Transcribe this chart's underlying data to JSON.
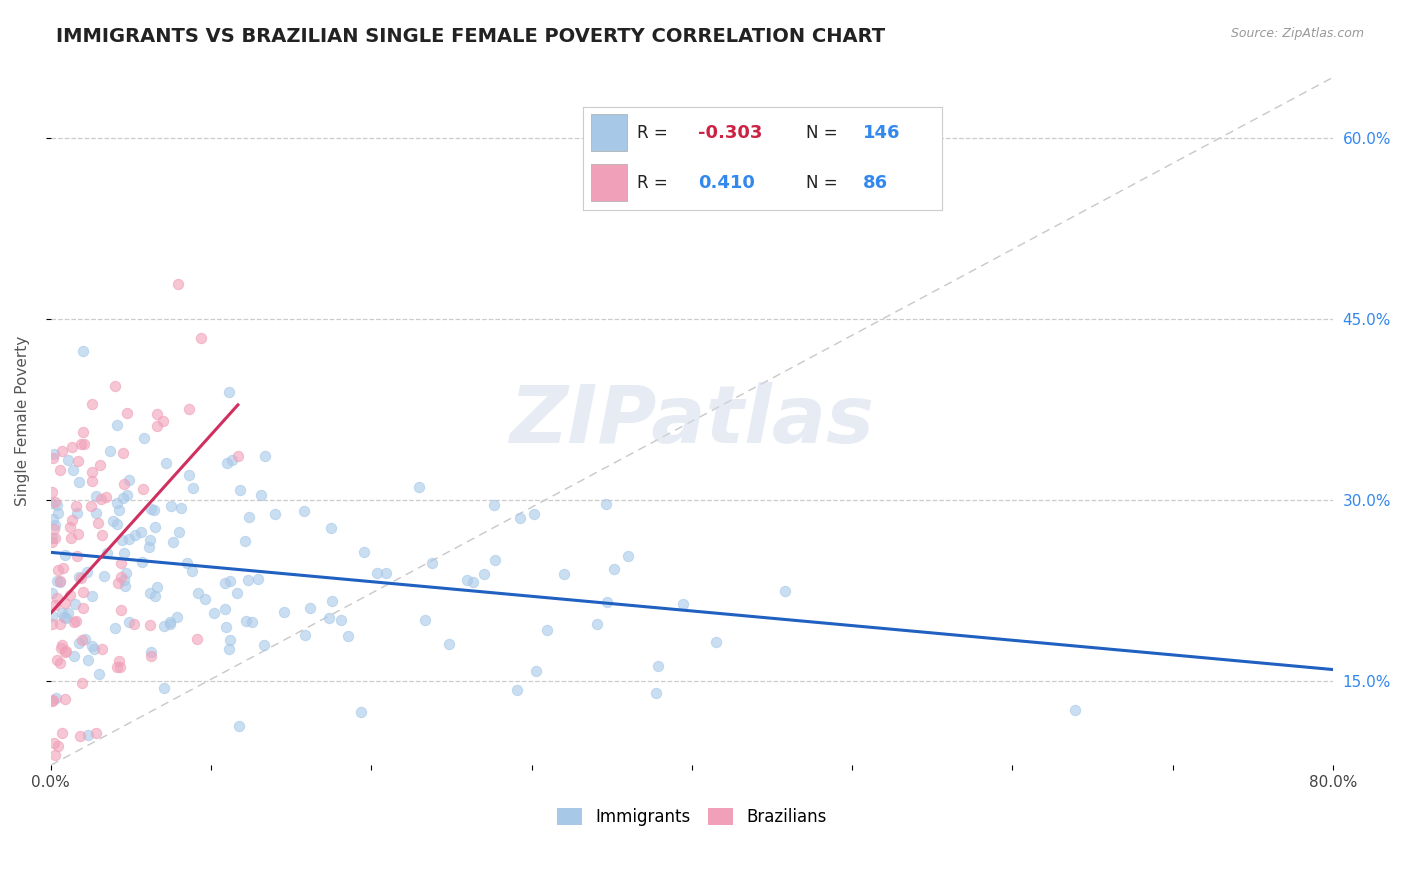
{
  "title": "IMMIGRANTS VS BRAZILIAN SINGLE FEMALE POVERTY CORRELATION CHART",
  "source_text": "Source: ZipAtlas.com",
  "ylabel": "Single Female Poverty",
  "xlim": [
    0.0,
    0.8
  ],
  "ylim": [
    0.08,
    0.65
  ],
  "xticks": [
    0.0,
    0.1,
    0.2,
    0.3,
    0.4,
    0.5,
    0.6,
    0.7,
    0.8
  ],
  "yticks": [
    0.15,
    0.3,
    0.45,
    0.6
  ],
  "yticklabels": [
    "15.0%",
    "30.0%",
    "45.0%",
    "60.0%"
  ],
  "immigrants_color": "#a8c8e8",
  "brazilians_color": "#f0a0b8",
  "trend_immigrants_color": "#2060c0",
  "trend_brazilians_color": "#d03060",
  "legend_R1": "-0.303",
  "legend_N1": "146",
  "legend_R2": "0.410",
  "legend_N2": "86",
  "legend_label1": "Immigrants",
  "legend_label2": "Brazilians",
  "watermark": "ZIPatlas",
  "title_fontsize": 14,
  "axis_label_fontsize": 11,
  "tick_fontsize": 11,
  "background_color": "#ffffff",
  "immigrants_N": 146,
  "brazilians_N": 86,
  "immigrants_seed": 12,
  "brazilians_seed": 99
}
